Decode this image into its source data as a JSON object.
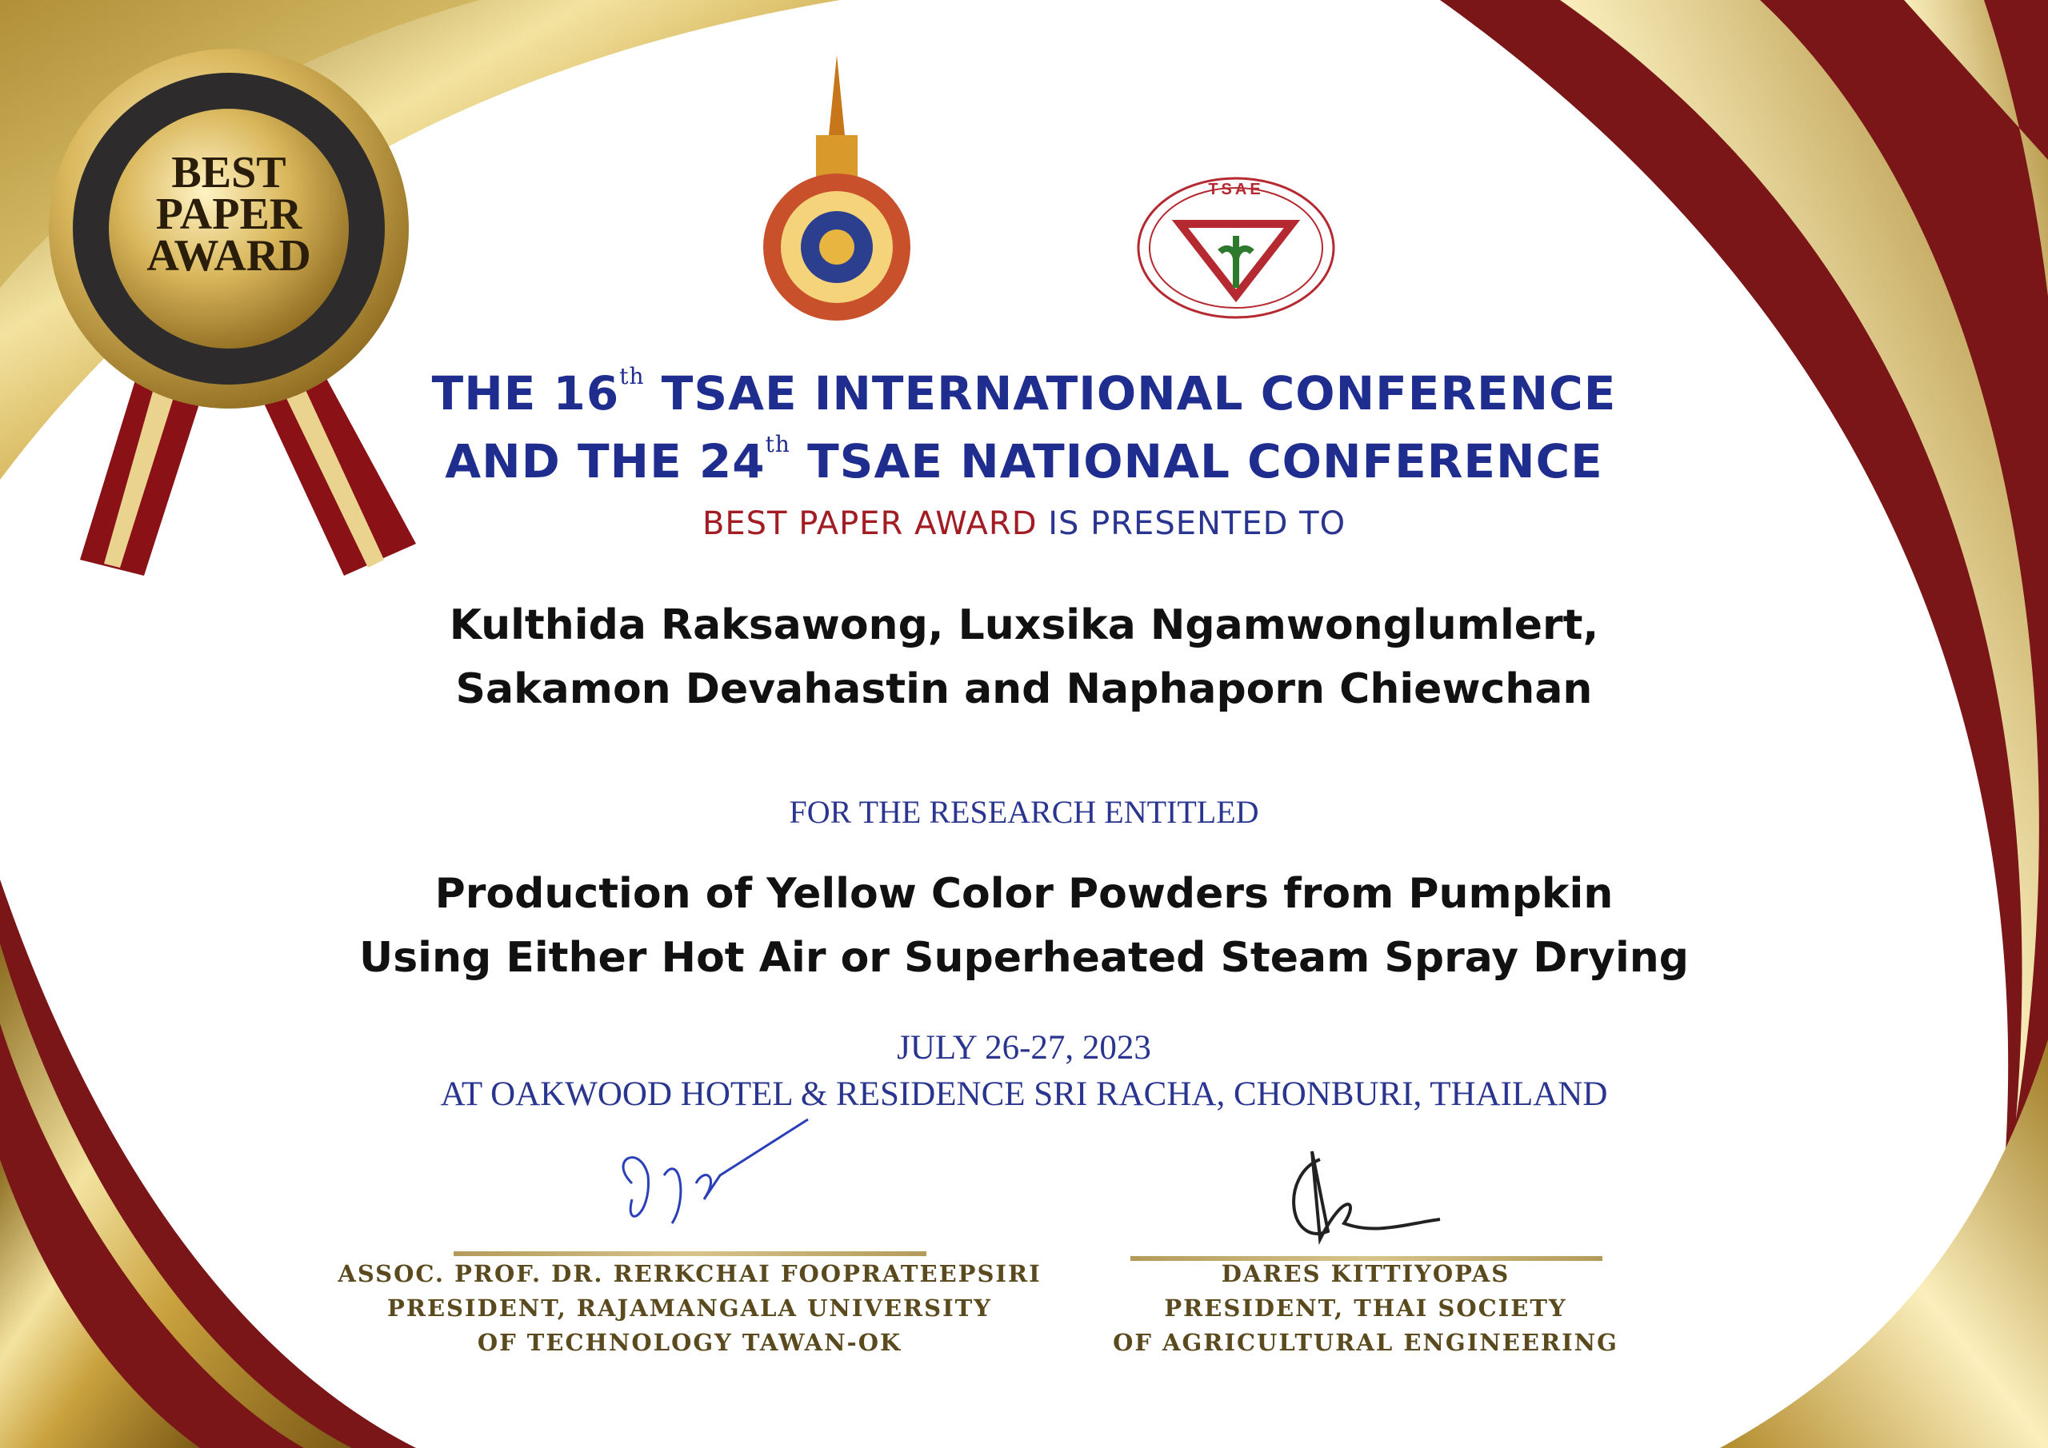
{
  "badge": {
    "line1": "BEST",
    "line2": "PAPER",
    "line3": "AWARD"
  },
  "conference": {
    "line1_pre": "THE 16",
    "line1_sup": "th",
    "line1_post": " TSAE INTERNATIONAL CONFERENCE",
    "line2_pre": "AND THE 24",
    "line2_sup": "th",
    "line2_post": " TSAE NATIONAL CONFERENCE"
  },
  "award": {
    "highlight": "BEST PAPER AWARD",
    "rest": " IS PRESENTED TO"
  },
  "recipients": {
    "line1": "Kulthida Raksawong, Luxsika Ngamwonglumlert,",
    "line2": "Sakamon Devahastin and Naphaporn Chiewchan"
  },
  "research_label": "FOR THE RESEARCH ENTITLED",
  "paper_title": {
    "line1": "Production of Yellow Color Powders from Pumpkin",
    "line2": "Using Either Hot Air or Superheated Steam Spray Drying"
  },
  "event": {
    "date": "JULY 26-27, 2023",
    "location": "AT OAKWOOD HOTEL & RESIDENCE SRI RACHA, CHONBURI, THAILAND"
  },
  "signatories": [
    {
      "name": "ASSOC. PROF. DR. RERKCHAI FOOPRATEEPSIRI",
      "title1": "PRESIDENT, RAJAMANGALA UNIVERSITY",
      "title2": "OF TECHNOLOGY TAWAN-OK"
    },
    {
      "name": "DARES KITTIYOPAS",
      "title1": "PRESIDENT, THAI SOCIETY",
      "title2": "OF AGRICULTURAL ENGINEERING"
    }
  ],
  "logos": {
    "tsae_text": "TSAE"
  },
  "colors": {
    "blue": "#1f2d8f",
    "red": "#a21c24",
    "gold": "#d4b048",
    "maroon": "#7a1518"
  }
}
